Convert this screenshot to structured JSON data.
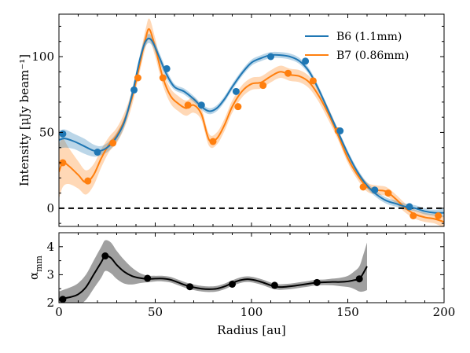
{
  "chart_data": [
    {
      "type": "line",
      "xlabel": "",
      "ylabel": "Intensity [μJy beam⁻¹]",
      "xlim": [
        0,
        200
      ],
      "ylim": [
        -12,
        128
      ],
      "yticks": [
        0,
        50,
        100
      ],
      "xticks": [
        0,
        50,
        100,
        150,
        200
      ],
      "zero_line": true,
      "legend_position": "top-right",
      "colors": {
        "b6": "#1f77b4",
        "b7": "#ff7f0e"
      },
      "series": [
        {
          "name": "B6 (1.1mm)",
          "x": [
            0,
            3,
            8,
            13,
            18,
            22,
            26,
            30,
            34,
            38,
            42,
            45,
            48,
            52,
            56,
            60,
            65,
            70,
            74,
            78,
            82,
            86,
            90,
            95,
            100,
            105,
            110,
            115,
            120,
            125,
            130,
            135,
            140,
            145,
            150,
            155,
            160,
            165,
            170,
            175,
            180,
            185,
            190,
            195,
            200
          ],
          "y": [
            45,
            46,
            44,
            41,
            38,
            38,
            41,
            47,
            57,
            75,
            98,
            110,
            111,
            100,
            88,
            80,
            77,
            72,
            67,
            64,
            66,
            72,
            80,
            89,
            96,
            99,
            101,
            101,
            100,
            97,
            90,
            78,
            64,
            50,
            36,
            24,
            15,
            9,
            5,
            3,
            1,
            0,
            -2,
            -3,
            -3
          ],
          "band": [
            6,
            6,
            5,
            5,
            4,
            3,
            3,
            3,
            3,
            3,
            3,
            3,
            3,
            3,
            3,
            2,
            2,
            2,
            2,
            2,
            2,
            2,
            2,
            2,
            2,
            2,
            2,
            2,
            2,
            2,
            2,
            2,
            2,
            2,
            2,
            2,
            2,
            2,
            2,
            2,
            2,
            2,
            2,
            2,
            3
          ],
          "markers_x": [
            2,
            20,
            39,
            56,
            74,
            92,
            110,
            128,
            146,
            164,
            182
          ],
          "markers_y": [
            49,
            37,
            78,
            92,
            68,
            77,
            100,
            97,
            51,
            12,
            1
          ]
        },
        {
          "name": "B7 (0.86mm)",
          "x": [
            0,
            2,
            5,
            10,
            14,
            18,
            22,
            26,
            30,
            34,
            38,
            42,
            45,
            47,
            50,
            54,
            58,
            62,
            66,
            70,
            74,
            78,
            82,
            86,
            90,
            95,
            100,
            105,
            110,
            115,
            120,
            125,
            130,
            135,
            140,
            145,
            150,
            155,
            160,
            165,
            170,
            175,
            180,
            185,
            190,
            195,
            200
          ],
          "y": [
            24,
            30,
            28,
            22,
            17,
            22,
            33,
            42,
            48,
            58,
            73,
            95,
            112,
            118,
            106,
            86,
            74,
            69,
            66,
            68,
            62,
            45,
            46,
            55,
            67,
            77,
            82,
            83,
            87,
            90,
            88,
            87,
            83,
            74,
            62,
            48,
            33,
            22,
            14,
            12,
            11,
            6,
            0,
            -4,
            -6,
            -7,
            -9
          ],
          "band": [
            18,
            16,
            12,
            9,
            8,
            7,
            6,
            5,
            5,
            5,
            5,
            5,
            6,
            7,
            6,
            5,
            5,
            5,
            5,
            5,
            4,
            4,
            4,
            4,
            4,
            4,
            4,
            4,
            4,
            4,
            4,
            4,
            4,
            4,
            4,
            3,
            3,
            3,
            3,
            3,
            3,
            3,
            3,
            3,
            3,
            3,
            4
          ],
          "markers_x": [
            2,
            15,
            28,
            41,
            54,
            67,
            80,
            93,
            106,
            119,
            132,
            145,
            158,
            171,
            184,
            197
          ],
          "markers_y": [
            30,
            18,
            43,
            86,
            86,
            68,
            44,
            67,
            81,
            89,
            84,
            51,
            14,
            10,
            -5,
            -5
          ]
        }
      ]
    },
    {
      "type": "line",
      "xlabel": "Radius [au]",
      "ylabel": "αmm",
      "ylabel_main": "α",
      "ylabel_sub": "mm",
      "xlim": [
        0,
        200
      ],
      "ylim": [
        2,
        4.5
      ],
      "yticks": [
        2,
        3,
        4
      ],
      "xticks": [
        0,
        50,
        100,
        150,
        200
      ],
      "colors": {
        "line": "#000000",
        "band": "#808080"
      },
      "series": [
        {
          "x": [
            0,
            2,
            6,
            10,
            14,
            18,
            22,
            24,
            27,
            30,
            34,
            38,
            42,
            46,
            50,
            54,
            58,
            62,
            66,
            70,
            74,
            78,
            82,
            86,
            90,
            94,
            98,
            102,
            106,
            110,
            114,
            118,
            122,
            126,
            130,
            134,
            138,
            142,
            146,
            150,
            153,
            156,
            158,
            160
          ],
          "y": [
            2.1,
            2.15,
            2.2,
            2.3,
            2.55,
            3.0,
            3.45,
            3.68,
            3.6,
            3.35,
            3.1,
            2.95,
            2.88,
            2.85,
            2.86,
            2.86,
            2.82,
            2.72,
            2.62,
            2.55,
            2.5,
            2.48,
            2.5,
            2.58,
            2.7,
            2.8,
            2.84,
            2.8,
            2.72,
            2.62,
            2.56,
            2.57,
            2.6,
            2.64,
            2.68,
            2.72,
            2.73,
            2.74,
            2.74,
            2.76,
            2.8,
            2.85,
            3.05,
            3.3
          ],
          "band": [
            0.3,
            0.3,
            0.35,
            0.4,
            0.45,
            0.5,
            0.55,
            0.55,
            0.55,
            0.5,
            0.42,
            0.3,
            0.18,
            0.12,
            0.1,
            0.1,
            0.1,
            0.1,
            0.1,
            0.1,
            0.1,
            0.1,
            0.1,
            0.1,
            0.1,
            0.1,
            0.1,
            0.1,
            0.1,
            0.1,
            0.1,
            0.1,
            0.1,
            0.1,
            0.1,
            0.1,
            0.1,
            0.12,
            0.15,
            0.2,
            0.3,
            0.45,
            0.65,
            0.85
          ],
          "markers_x": [
            2,
            24,
            46,
            68,
            90,
            112,
            134,
            156
          ],
          "markers_y": [
            2.12,
            3.67,
            2.87,
            2.57,
            2.66,
            2.62,
            2.72,
            2.85
          ]
        }
      ]
    }
  ]
}
